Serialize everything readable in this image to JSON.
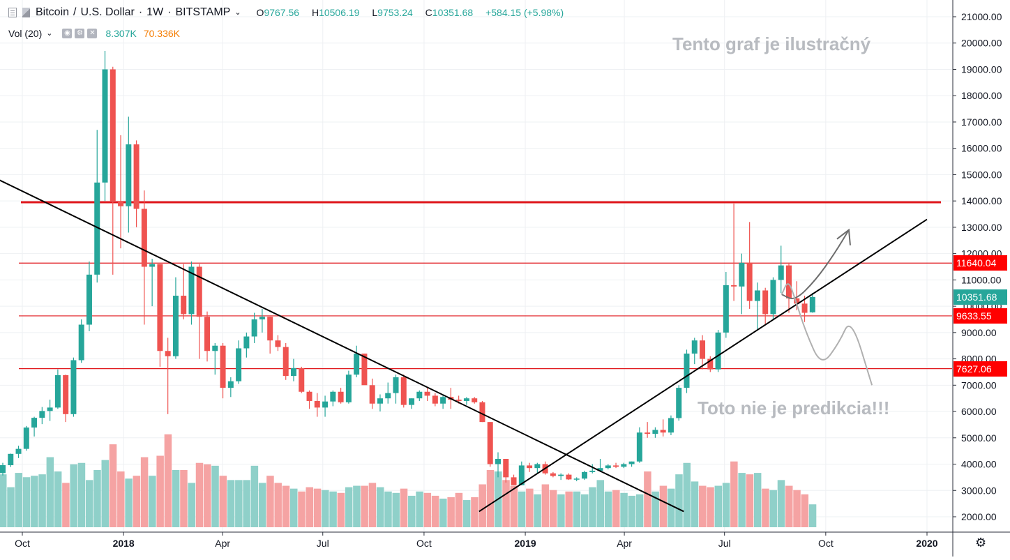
{
  "header": {
    "symbol": "Bitcoin",
    "quote": "U.S. Dollar",
    "interval": "1W",
    "exchange": "BITSTAMP",
    "ohlc": [
      {
        "k": "O",
        "v": "9767.56"
      },
      {
        "k": "H",
        "v": "10506.19"
      },
      {
        "k": "L",
        "v": "9753.24"
      },
      {
        "k": "C",
        "v": "10351.68"
      }
    ],
    "change": "+584.15 (+5.98%)"
  },
  "volume_legend": {
    "label": "Vol (20)",
    "value_1": "8.307K",
    "value_2": "70.336K"
  },
  "annotations": {
    "top": "Tento graf je ilustračný",
    "bottom": "Toto nie je predikcia!!!"
  },
  "colors": {
    "up": "#26a69a",
    "down": "#ef5350",
    "up_volume": "#8fd0c9",
    "down_volume": "#f5a3a3",
    "level_line": "#e0161b",
    "trend_line": "#000000",
    "scenario_line": "#9e9e9e",
    "tag_last": "#26a69a",
    "tag_level": "#ff0000"
  },
  "price_tags": [
    {
      "value": 11640.04,
      "label": "11640.04",
      "kind": "level"
    },
    {
      "value": 10351.68,
      "label": "10351.68",
      "kind": "last"
    },
    {
      "value": 9633.55,
      "label": "9633.55",
      "kind": "level"
    },
    {
      "value": 7627.06,
      "label": "7627.06",
      "kind": "level"
    }
  ],
  "chart_data": {
    "type": "candlestick",
    "title": "Bitcoin / U.S. Dollar · 1W · BITSTAMP",
    "y_axis": {
      "min": 1600,
      "max": 21400,
      "ticks": [
        "2000.00",
        "3000.00",
        "4000.00",
        "5000.00",
        "6000.00",
        "7000.00",
        "8000.00",
        "9000.00",
        "10000.00",
        "11000.00",
        "12000.00",
        "13000.00",
        "14000.00",
        "15000.00",
        "16000.00",
        "17000.00",
        "18000.00",
        "19000.00",
        "20000.00",
        "21000.00"
      ]
    },
    "x_axis": {
      "ticks": [
        {
          "label": "Oct",
          "date": "2017-10-01",
          "bold": false
        },
        {
          "label": "2018",
          "date": "2018-01-01",
          "bold": true
        },
        {
          "label": "Apr",
          "date": "2018-04-01",
          "bold": false
        },
        {
          "label": "Jul",
          "date": "2018-07-01",
          "bold": false
        },
        {
          "label": "Oct",
          "date": "2018-10-01",
          "bold": false
        },
        {
          "label": "2019",
          "date": "2019-01-01",
          "bold": true
        },
        {
          "label": "Apr",
          "date": "2019-04-01",
          "bold": false
        },
        {
          "label": "Jul",
          "date": "2019-07-01",
          "bold": false
        },
        {
          "label": "Oct",
          "date": "2019-10-01",
          "bold": false
        },
        {
          "label": "2020",
          "date": "2020-01-01",
          "bold": true
        }
      ]
    },
    "grid": true,
    "horizontal_levels": [
      {
        "price": 13950,
        "from": "2017-10-01",
        "to": "2020-01-01",
        "thick": true
      },
      {
        "price": 11640.04,
        "from": "2017-10-01",
        "to": "2020-01-01",
        "thick": false
      },
      {
        "price": 9633.55,
        "from": "2017-10-01",
        "to": "2020-01-01",
        "thick": false
      },
      {
        "price": 7627.06,
        "from": "2017-10-01",
        "to": "2020-01-01",
        "thick": false
      }
    ],
    "trend_lines": [
      {
        "from": {
          "date": "2017-08-31",
          "price": 15000
        },
        "to": {
          "date": "2019-05-25",
          "price": 2200
        }
      },
      {
        "from": {
          "date": "2018-11-20",
          "price": 2200
        },
        "to": {
          "date": "2020-01-01",
          "price": 13300
        }
      }
    ],
    "scenario_paths": [
      {
        "kind": "up",
        "points": [
          [
            "2019-08-22",
            10450
          ],
          [
            "2019-09-03",
            10200
          ],
          [
            "2019-09-22",
            11000
          ],
          [
            "2019-10-09",
            12000
          ],
          [
            "2019-10-22",
            12900
          ]
        ]
      },
      {
        "kind": "down",
        "points": [
          [
            "2019-08-22",
            10450
          ],
          [
            "2019-08-28",
            11000
          ],
          [
            "2019-09-03",
            10300
          ],
          [
            "2019-09-13",
            9000
          ],
          [
            "2019-09-27",
            7700
          ],
          [
            "2019-10-13",
            8600
          ],
          [
            "2019-10-24",
            9600
          ],
          [
            "2019-11-12",
            7000
          ]
        ]
      }
    ],
    "candles": [
      {
        "o": 3660,
        "h": 4050,
        "l": 3570,
        "c": 3960,
        "v": 3.7
      },
      {
        "o": 3960,
        "h": 4400,
        "l": 3890,
        "c": 4390,
        "v": 2.8
      },
      {
        "o": 4390,
        "h": 4700,
        "l": 4230,
        "c": 4580,
        "v": 3.8
      },
      {
        "o": 4580,
        "h": 5450,
        "l": 4510,
        "c": 5390,
        "v": 3.5
      },
      {
        "o": 5390,
        "h": 5800,
        "l": 5050,
        "c": 5760,
        "v": 3.6
      },
      {
        "o": 5760,
        "h": 6170,
        "l": 5520,
        "c": 6020,
        "v": 3.7
      },
      {
        "o": 6020,
        "h": 6450,
        "l": 5640,
        "c": 6150,
        "v": 4.9
      },
      {
        "o": 6150,
        "h": 7600,
        "l": 6100,
        "c": 7380,
        "v": 3.9
      },
      {
        "o": 7380,
        "h": 7400,
        "l": 5600,
        "c": 5900,
        "v": 3.1
      },
      {
        "o": 5900,
        "h": 8050,
        "l": 5800,
        "c": 7950,
        "v": 4.4
      },
      {
        "o": 7950,
        "h": 9500,
        "l": 7850,
        "c": 9300,
        "v": 4.5
      },
      {
        "o": 9300,
        "h": 11700,
        "l": 9050,
        "c": 11200,
        "v": 3.3
      },
      {
        "o": 11200,
        "h": 16700,
        "l": 10900,
        "c": 14700,
        "v": 4.0
      },
      {
        "o": 14700,
        "h": 19700,
        "l": 14000,
        "c": 19000,
        "v": 4.7
      },
      {
        "o": 19000,
        "h": 19100,
        "l": 11200,
        "c": 14000,
        "v": 5.8
      },
      {
        "o": 14000,
        "h": 16500,
        "l": 12200,
        "c": 13800,
        "v": 3.9
      },
      {
        "o": 13800,
        "h": 17200,
        "l": 12800,
        "c": 16150,
        "v": 3.4
      },
      {
        "o": 16150,
        "h": 16300,
        "l": 13000,
        "c": 13700,
        "v": 3.6
      },
      {
        "o": 13700,
        "h": 14400,
        "l": 9300,
        "c": 11500,
        "v": 4.9
      },
      {
        "o": 11500,
        "h": 11800,
        "l": 10000,
        "c": 11600,
        "v": 3.6
      },
      {
        "o": 11600,
        "h": 11500,
        "l": 7700,
        "c": 8300,
        "v": 5.0
      },
      {
        "o": 8300,
        "h": 8800,
        "l": 5900,
        "c": 8100,
        "v": 6.5
      },
      {
        "o": 8100,
        "h": 11100,
        "l": 8000,
        "c": 10400,
        "v": 4.0
      },
      {
        "o": 10400,
        "h": 11600,
        "l": 9500,
        "c": 9700,
        "v": 4.0
      },
      {
        "o": 9700,
        "h": 11700,
        "l": 9300,
        "c": 11500,
        "v": 3.1
      },
      {
        "o": 11500,
        "h": 11600,
        "l": 8000,
        "c": 9600,
        "v": 4.5
      },
      {
        "o": 9600,
        "h": 9800,
        "l": 7900,
        "c": 8300,
        "v": 4.4
      },
      {
        "o": 8300,
        "h": 8600,
        "l": 7400,
        "c": 8500,
        "v": 4.3
      },
      {
        "o": 8500,
        "h": 8600,
        "l": 6500,
        "c": 6900,
        "v": 3.6
      },
      {
        "o": 6900,
        "h": 7300,
        "l": 6550,
        "c": 7150,
        "v": 3.3
      },
      {
        "o": 7150,
        "h": 8700,
        "l": 7050,
        "c": 8400,
        "v": 3.3
      },
      {
        "o": 8400,
        "h": 9000,
        "l": 8050,
        "c": 8850,
        "v": 3.3
      },
      {
        "o": 8850,
        "h": 9750,
        "l": 8600,
        "c": 9500,
        "v": 4.3
      },
      {
        "o": 9500,
        "h": 9900,
        "l": 9000,
        "c": 9600,
        "v": 3.1
      },
      {
        "o": 9600,
        "h": 9600,
        "l": 8200,
        "c": 8700,
        "v": 3.6
      },
      {
        "o": 8700,
        "h": 8900,
        "l": 8300,
        "c": 8450,
        "v": 3.1
      },
      {
        "o": 8450,
        "h": 8600,
        "l": 7200,
        "c": 7350,
        "v": 2.9
      },
      {
        "o": 7350,
        "h": 8000,
        "l": 7150,
        "c": 7650,
        "v": 2.7
      },
      {
        "o": 7650,
        "h": 7700,
        "l": 6700,
        "c": 6750,
        "v": 2.5
      },
      {
        "o": 6750,
        "h": 6800,
        "l": 6100,
        "c": 6400,
        "v": 2.8
      },
      {
        "o": 6400,
        "h": 6700,
        "l": 5800,
        "c": 6150,
        "v": 2.7
      },
      {
        "o": 6150,
        "h": 6600,
        "l": 5800,
        "c": 6380,
        "v": 2.6
      },
      {
        "o": 6380,
        "h": 6800,
        "l": 6200,
        "c": 6750,
        "v": 2.5
      },
      {
        "o": 6750,
        "h": 6900,
        "l": 6300,
        "c": 6350,
        "v": 2.4
      },
      {
        "o": 6350,
        "h": 7550,
        "l": 6300,
        "c": 7400,
        "v": 2.8
      },
      {
        "o": 7400,
        "h": 8500,
        "l": 7300,
        "c": 8200,
        "v": 2.9
      },
      {
        "o": 8200,
        "h": 8200,
        "l": 7100,
        "c": 7000,
        "v": 2.9
      },
      {
        "o": 7000,
        "h": 7250,
        "l": 6100,
        "c": 6300,
        "v": 3.1
      },
      {
        "o": 6300,
        "h": 6650,
        "l": 6000,
        "c": 6500,
        "v": 2.8
      },
      {
        "o": 6500,
        "h": 7100,
        "l": 6300,
        "c": 6700,
        "v": 2.5
      },
      {
        "o": 6700,
        "h": 7400,
        "l": 6300,
        "c": 7300,
        "v": 2.4
      },
      {
        "o": 7300,
        "h": 7400,
        "l": 6150,
        "c": 6250,
        "v": 2.7
      },
      {
        "o": 6250,
        "h": 6500,
        "l": 6100,
        "c": 6500,
        "v": 2.2
      },
      {
        "o": 6500,
        "h": 6800,
        "l": 6400,
        "c": 6750,
        "v": 2.5
      },
      {
        "o": 6750,
        "h": 6900,
        "l": 6400,
        "c": 6600,
        "v": 2.4
      },
      {
        "o": 6600,
        "h": 6700,
        "l": 6200,
        "c": 6300,
        "v": 2.2
      },
      {
        "o": 6300,
        "h": 6650,
        "l": 6100,
        "c": 6550,
        "v": 2.0
      },
      {
        "o": 6550,
        "h": 6900,
        "l": 6100,
        "c": 6450,
        "v": 2.1
      },
      {
        "o": 6450,
        "h": 6600,
        "l": 6300,
        "c": 6400,
        "v": 2.4
      },
      {
        "o": 6400,
        "h": 6550,
        "l": 6250,
        "c": 6500,
        "v": 1.9
      },
      {
        "o": 6500,
        "h": 6550,
        "l": 6300,
        "c": 6350,
        "v": 2.1
      },
      {
        "o": 6350,
        "h": 6400,
        "l": 5600,
        "c": 5600,
        "v": 3.0
      },
      {
        "o": 5600,
        "h": 5600,
        "l": 3900,
        "c": 4000,
        "v": 4.0
      },
      {
        "o": 4000,
        "h": 4450,
        "l": 3500,
        "c": 4200,
        "v": 3.9
      },
      {
        "o": 4200,
        "h": 4200,
        "l": 3300,
        "c": 3500,
        "v": 3.3
      },
      {
        "o": 3500,
        "h": 3600,
        "l": 3200,
        "c": 3200,
        "v": 2.9
      },
      {
        "o": 3200,
        "h": 4100,
        "l": 3200,
        "c": 3950,
        "v": 2.5
      },
      {
        "o": 3950,
        "h": 4050,
        "l": 3700,
        "c": 3850,
        "v": 2.7
      },
      {
        "o": 3850,
        "h": 4050,
        "l": 3650,
        "c": 4000,
        "v": 2.3
      },
      {
        "o": 4000,
        "h": 4100,
        "l": 3600,
        "c": 3650,
        "v": 3.0
      },
      {
        "o": 3650,
        "h": 3700,
        "l": 3500,
        "c": 3550,
        "v": 2.6
      },
      {
        "o": 3550,
        "h": 3650,
        "l": 3400,
        "c": 3600,
        "v": 2.3
      },
      {
        "o": 3600,
        "h": 3650,
        "l": 3400,
        "c": 3420,
        "v": 2.5
      },
      {
        "o": 3420,
        "h": 3500,
        "l": 3350,
        "c": 3450,
        "v": 2.5
      },
      {
        "o": 3450,
        "h": 3750,
        "l": 3400,
        "c": 3700,
        "v": 2.3
      },
      {
        "o": 3700,
        "h": 4000,
        "l": 3650,
        "c": 3750,
        "v": 2.8
      },
      {
        "o": 3750,
        "h": 4200,
        "l": 3700,
        "c": 3850,
        "v": 3.3
      },
      {
        "o": 3850,
        "h": 4000,
        "l": 3800,
        "c": 3950,
        "v": 2.5
      },
      {
        "o": 3950,
        "h": 4050,
        "l": 3850,
        "c": 3900,
        "v": 2.6
      },
      {
        "o": 3900,
        "h": 4050,
        "l": 3850,
        "c": 4000,
        "v": 2.4
      },
      {
        "o": 4000,
        "h": 4100,
        "l": 3900,
        "c": 4100,
        "v": 2.2
      },
      {
        "o": 4100,
        "h": 5400,
        "l": 4050,
        "c": 5200,
        "v": 2.3
      },
      {
        "o": 5200,
        "h": 5600,
        "l": 5000,
        "c": 5150,
        "v": 3.9
      },
      {
        "o": 5150,
        "h": 5400,
        "l": 5000,
        "c": 5300,
        "v": 2.5
      },
      {
        "o": 5300,
        "h": 5700,
        "l": 5050,
        "c": 5200,
        "v": 2.9
      },
      {
        "o": 5200,
        "h": 5850,
        "l": 5100,
        "c": 5750,
        "v": 2.7
      },
      {
        "o": 5750,
        "h": 7000,
        "l": 5650,
        "c": 6900,
        "v": 3.7
      },
      {
        "o": 6900,
        "h": 8350,
        "l": 6700,
        "c": 8200,
        "v": 4.5
      },
      {
        "o": 8200,
        "h": 8800,
        "l": 7800,
        "c": 8700,
        "v": 3.2
      },
      {
        "o": 8700,
        "h": 8900,
        "l": 7600,
        "c": 8000,
        "v": 2.9
      },
      {
        "o": 8000,
        "h": 8100,
        "l": 7500,
        "c": 7600,
        "v": 2.8
      },
      {
        "o": 7600,
        "h": 9100,
        "l": 7500,
        "c": 9000,
        "v": 2.9
      },
      {
        "o": 9000,
        "h": 11300,
        "l": 8800,
        "c": 10800,
        "v": 3.1
      },
      {
        "o": 10800,
        "h": 13900,
        "l": 10200,
        "c": 10750,
        "v": 4.6
      },
      {
        "o": 10750,
        "h": 12000,
        "l": 9700,
        "c": 11650,
        "v": 3.8
      },
      {
        "o": 11650,
        "h": 13200,
        "l": 9900,
        "c": 10200,
        "v": 3.7
      },
      {
        "o": 10200,
        "h": 10900,
        "l": 9100,
        "c": 10600,
        "v": 3.8
      },
      {
        "o": 10600,
        "h": 10700,
        "l": 9300,
        "c": 9700,
        "v": 2.7
      },
      {
        "o": 9700,
        "h": 11100,
        "l": 9500,
        "c": 11000,
        "v": 2.6
      },
      {
        "o": 11000,
        "h": 12300,
        "l": 10500,
        "c": 11550,
        "v": 3.3
      },
      {
        "o": 11550,
        "h": 11650,
        "l": 9750,
        "c": 10300,
        "v": 2.9
      },
      {
        "o": 10300,
        "h": 10950,
        "l": 9850,
        "c": 10100,
        "v": 2.6
      },
      {
        "o": 10100,
        "h": 10400,
        "l": 9400,
        "c": 9750,
        "v": 2.3
      },
      {
        "o": 9767.56,
        "h": 10506.19,
        "l": 9753.24,
        "c": 10351.68,
        "v": 1.6
      }
    ]
  }
}
